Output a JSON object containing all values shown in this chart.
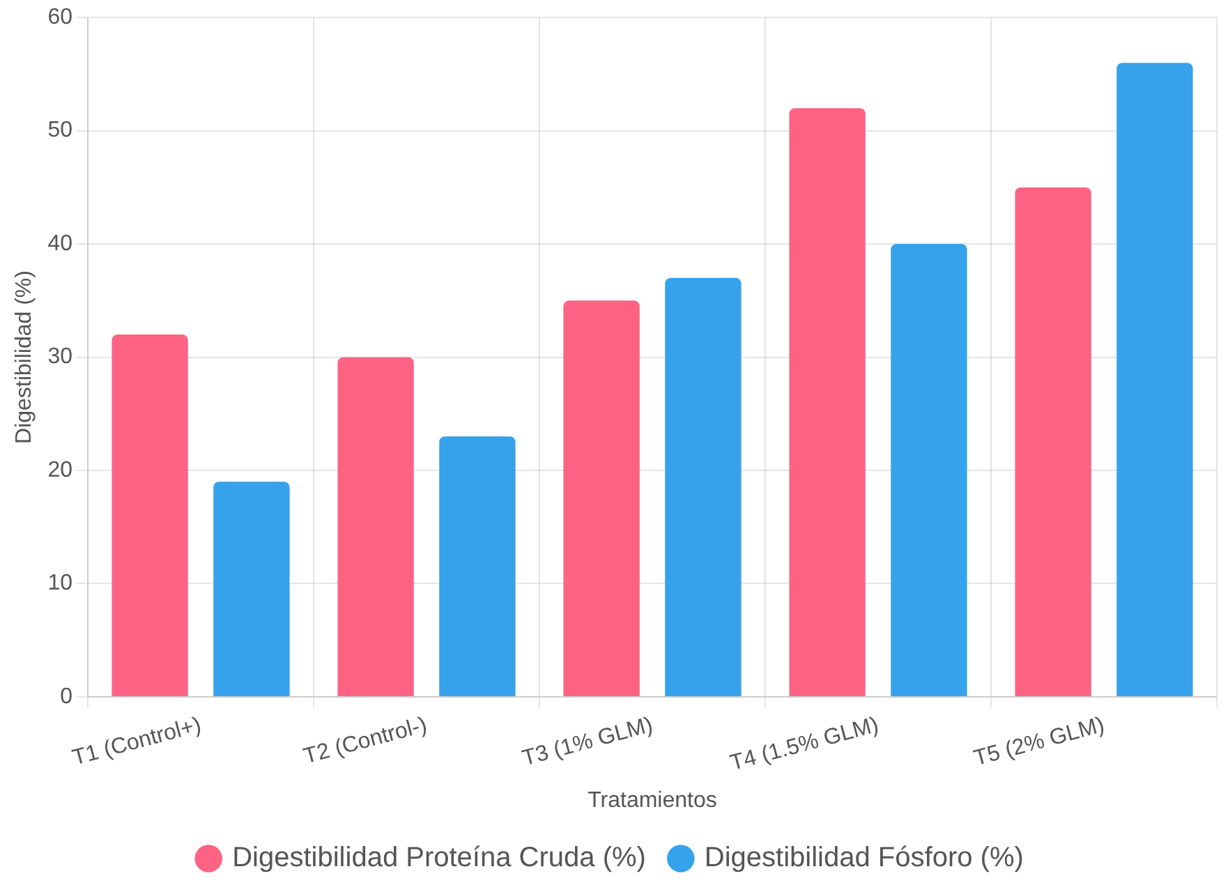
{
  "chart_data": {
    "type": "bar",
    "xlabel": "Tratamientos",
    "ylabel": "Digestibilidad (%)",
    "categories": [
      "T1 (Control+)",
      "T2 (Control-)",
      "T3 (1% GLM)",
      "T4 (1.5% GLM)",
      "T5 (2% GLM)"
    ],
    "series": [
      {
        "name": "Digestibilidad Proteína Cruda (%)",
        "color": "#ff6384",
        "values": [
          32,
          30,
          35,
          52,
          45
        ]
      },
      {
        "name": "Digestibilidad Fósforo (%)",
        "color": "#36a2eb",
        "values": [
          19,
          23,
          37,
          40,
          56
        ]
      }
    ],
    "ylim": [
      0,
      60
    ],
    "yticks": [
      0,
      10,
      20,
      30,
      40,
      50,
      60
    ],
    "grid": true,
    "legend": "bottom"
  }
}
